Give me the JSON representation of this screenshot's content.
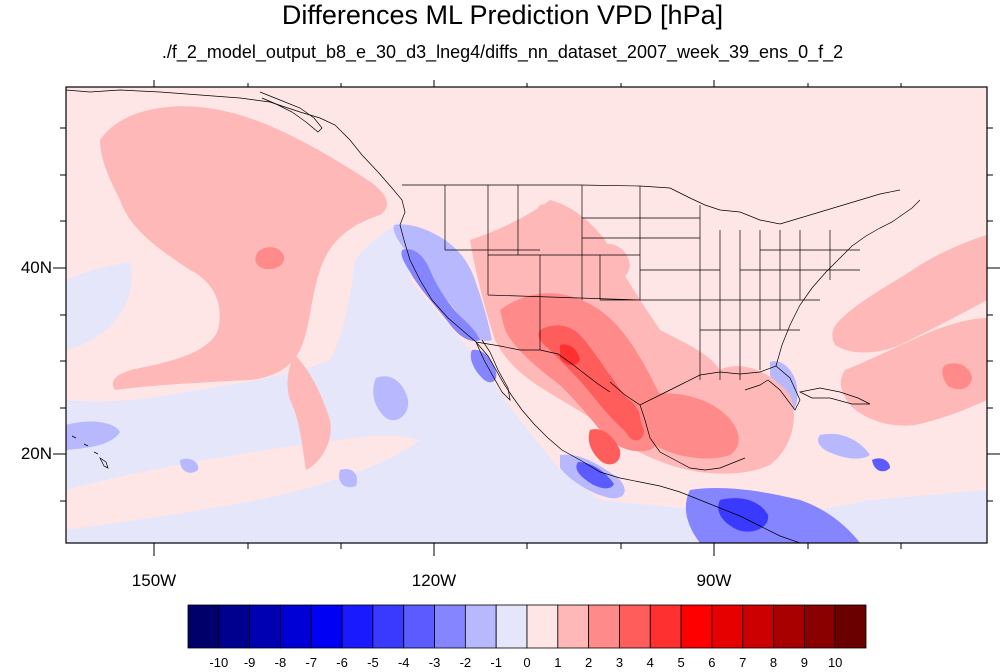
{
  "title": "Differences ML Prediction VPD [hPa]",
  "subtitle": "./f_2_model_output_b8_e_30_d3_lneg4/diffs_nn_dataset_2007_week_39_ens_0_f_2",
  "map": {
    "lat_labels": [
      "40N",
      "20N"
    ],
    "lon_labels": [
      "150W",
      "120W",
      "90W"
    ]
  },
  "colorbar": {
    "labels": [
      "-10",
      "-9",
      "-8",
      "-7",
      "-6",
      "-5",
      "-4",
      "-3",
      "-2",
      "-1",
      "0",
      "1",
      "2",
      "3",
      "4",
      "5",
      "6",
      "7",
      "8",
      "9",
      "10"
    ],
    "colors": [
      "#00006b",
      "#00008f",
      "#0000b3",
      "#0000d6",
      "#0000f5",
      "#1a1aff",
      "#3a3aff",
      "#5b5bff",
      "#8585ff",
      "#b8b8ff",
      "#e6e6fa",
      "#ffe6e6",
      "#ffb8b8",
      "#ff8a8a",
      "#ff5c5c",
      "#ff3030",
      "#ff0000",
      "#e60000",
      "#cc0000",
      "#a80000",
      "#8a0000",
      "#6b0000"
    ]
  }
}
